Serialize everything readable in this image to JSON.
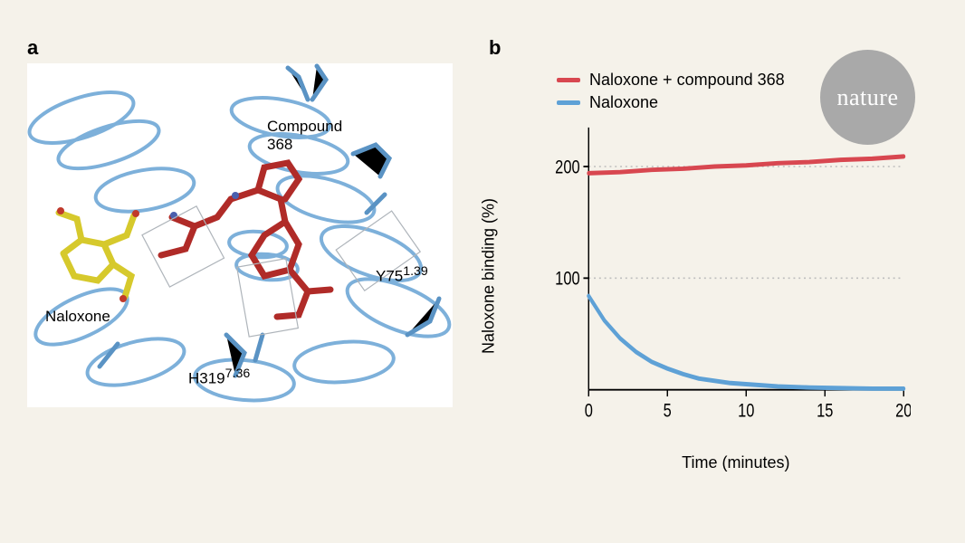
{
  "badge": {
    "text": "nature",
    "bg": "#a9a9a9",
    "fg": "#ffffff"
  },
  "panelA": {
    "label": "a",
    "background": "#ffffff",
    "protein_color": "#6fa8d6",
    "compound_color": "#c0392b",
    "naloxone_color": "#e8d843",
    "labels": {
      "compound": "Compound\n368",
      "naloxone": "Naloxone",
      "h319": "H319",
      "h319_sup": "7.36",
      "y75": "Y75",
      "y75_sup": "1.39"
    }
  },
  "panelB": {
    "label": "b",
    "chart": {
      "type": "line",
      "background": "#f5f2ea",
      "grid_color": "#bdbdbd",
      "axis_color": "#000000",
      "xlabel": "Time (minutes)",
      "ylabel": "Naloxone binding (%)",
      "xlim": [
        0,
        20
      ],
      "ylim": [
        0,
        230
      ],
      "xticks": [
        0,
        5,
        10,
        15,
        20
      ],
      "yticks": [
        100,
        200
      ],
      "line_width": 4,
      "label_fontsize": 18,
      "tick_fontsize": 17,
      "series": [
        {
          "name": "Naloxone + compound 368",
          "color": "#d84750",
          "x": [
            0,
            2,
            4,
            6,
            8,
            10,
            12,
            14,
            16,
            18,
            20
          ],
          "y": [
            194,
            195,
            197,
            198,
            200,
            201,
            203,
            204,
            206,
            207,
            209
          ]
        },
        {
          "name": "Naloxone",
          "color": "#5ea1d6",
          "x": [
            0,
            1,
            2,
            3,
            4,
            5,
            6,
            7,
            8,
            9,
            10,
            12,
            14,
            16,
            18,
            20
          ],
          "y": [
            84,
            62,
            46,
            34,
            25,
            19,
            14,
            10,
            8,
            6,
            5,
            3,
            2,
            1.5,
            1,
            1
          ]
        }
      ]
    }
  }
}
